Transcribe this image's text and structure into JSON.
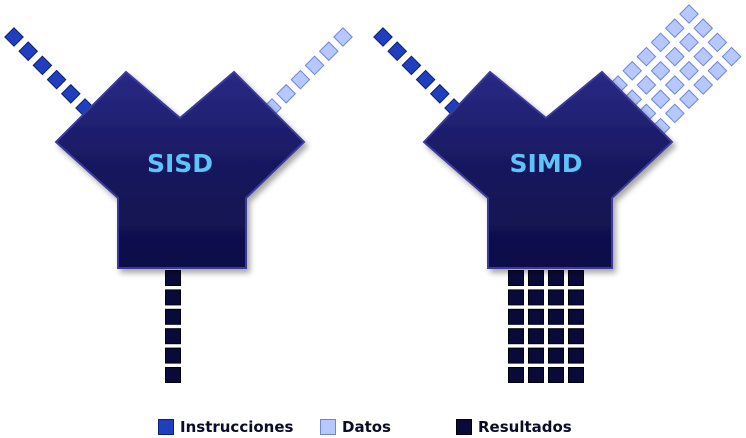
{
  "units": [
    {
      "label": "SISD",
      "data_streams": 1,
      "result_streams": 1
    },
    {
      "label": "SIMD",
      "data_streams": 4,
      "result_streams": 4
    }
  ],
  "legend": {
    "instructions": {
      "label": "Instrucciones",
      "color": "#1f3fbf"
    },
    "data": {
      "label": "Datos",
      "color": "#b6c8ff"
    },
    "results": {
      "label": "Resultados",
      "color": "#0a0a3a"
    }
  },
  "colors": {
    "processor_fill": "#14145a",
    "processor_edge": "#2a2a8a",
    "label_color": "#5ec4f6"
  }
}
